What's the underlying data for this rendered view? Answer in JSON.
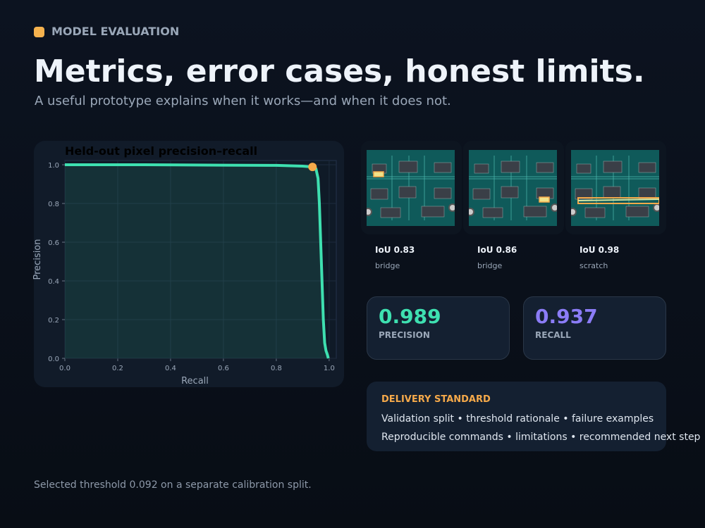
{
  "header": {
    "eyebrow": "MODEL EVALUATION",
    "title": "Metrics, error cases, honest limits.",
    "subtitle": "A useful prototype explains when it works—and when it does not."
  },
  "chart_data": {
    "type": "line",
    "title": "Held-out pixel precision–recall",
    "x_label": "Recall",
    "y_label": "Precision",
    "xlim": [
      0,
      1.027
    ],
    "ylim": [
      0,
      1.022
    ],
    "xticks": [
      {
        "value": 0,
        "label": "0.0"
      },
      {
        "value": 0.2,
        "label": "0.2"
      },
      {
        "value": 0.4,
        "label": "0.4"
      },
      {
        "value": 0.6,
        "label": "0.6"
      },
      {
        "value": 0.8,
        "label": "0.8"
      },
      {
        "value": 1,
        "label": "1.0"
      }
    ],
    "yticks": [
      {
        "value": 0,
        "label": "0.0"
      },
      {
        "value": 0.2,
        "label": "0.2"
      },
      {
        "value": 0.4,
        "label": "0.4"
      },
      {
        "value": 0.6,
        "label": "0.6"
      },
      {
        "value": 0.8,
        "label": "0.8"
      },
      {
        "value": 1,
        "label": "1.0"
      }
    ],
    "grid": true,
    "fill_under": true,
    "series": [
      {
        "color": "#3ee0b0",
        "x": [
          0,
          0.3,
          0.6,
          0.8,
          0.9,
          0.937,
          0.95,
          0.958,
          0.963,
          0.968,
          0.973,
          0.978,
          0.983,
          0.988,
          0.993,
          0.997
        ],
        "values": [
          1.0,
          1.0,
          0.998,
          0.997,
          0.993,
          0.989,
          0.98,
          0.93,
          0.8,
          0.6,
          0.4,
          0.2,
          0.08,
          0.04,
          0.02,
          0
        ]
      }
    ],
    "operating_point": {
      "x": 0.937,
      "y": 0.989,
      "color": "#f5a94a"
    }
  },
  "examples": [
    {
      "score": "IoU 0.83",
      "label": "bridge"
    },
    {
      "score": "IoU 0.86",
      "label": "bridge"
    },
    {
      "score": "IoU 0.98",
      "label": "scratch"
    }
  ],
  "metrics": [
    {
      "value": "0.989",
      "label": "PRECISION"
    },
    {
      "value": "0.937",
      "label": "RECALL"
    }
  ],
  "delivery": {
    "title": "DELIVERY STANDARD",
    "lines": [
      "Validation split • threshold rationale • failure examples",
      "Reproducible commands • limitations • recommended next step"
    ]
  },
  "footer": "Selected threshold 0.092 on a separate calibration split."
}
